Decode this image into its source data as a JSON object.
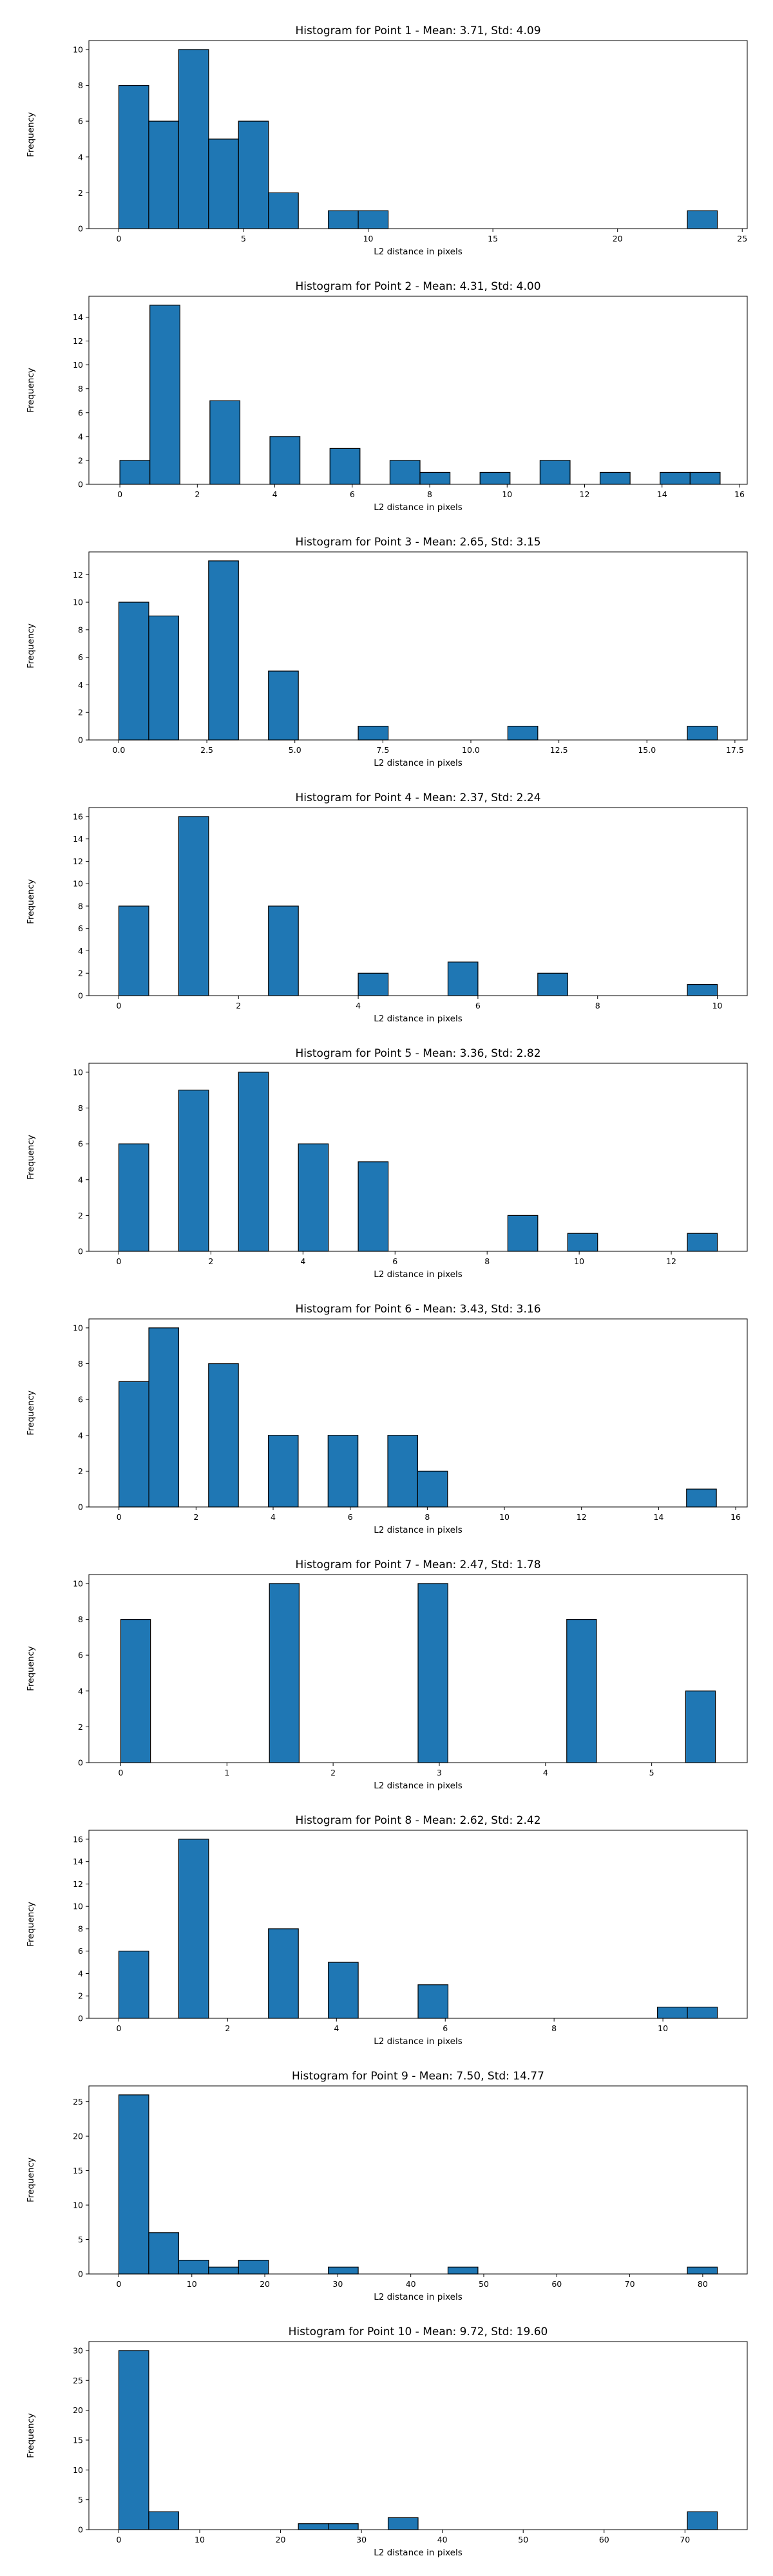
{
  "chart_data": [
    {
      "type": "bar",
      "title": "Histogram for Point 1 - Mean: 3.71, Std: 4.09",
      "xlabel": "L2 distance in pixels",
      "ylabel": "Frequency",
      "xlim": [
        -1.2,
        25.2
      ],
      "ylim": [
        0,
        10.5
      ],
      "xticks": [
        0,
        5,
        10,
        15,
        20,
        25
      ],
      "xtick_labels": [
        "0",
        "5",
        "10",
        "15",
        "20",
        "25"
      ],
      "yticks": [
        0,
        2,
        4,
        6,
        8,
        10
      ],
      "ytick_labels": [
        "0",
        "2",
        "4",
        "6",
        "8",
        "10"
      ],
      "bin_start": 0,
      "bin_width": 1.2,
      "counts": [
        8,
        6,
        10,
        5,
        6,
        2,
        0,
        1,
        1,
        0,
        0,
        0,
        0,
        0,
        0,
        0,
        0,
        0,
        0,
        1
      ]
    },
    {
      "type": "bar",
      "title": "Histogram for Point 2 - Mean: 4.31, Std: 4.00",
      "xlabel": "L2 distance in pixels",
      "ylabel": "Frequency",
      "xlim": [
        -0.8,
        16.2
      ],
      "ylim": [
        0,
        15.75
      ],
      "xticks": [
        0,
        2,
        4,
        6,
        8,
        10,
        12,
        14,
        16
      ],
      "xtick_labels": [
        "0",
        "2",
        "4",
        "6",
        "8",
        "10",
        "12",
        "14",
        "16"
      ],
      "yticks": [
        0,
        2,
        4,
        6,
        8,
        10,
        12,
        14
      ],
      "ytick_labels": [
        "0",
        "2",
        "4",
        "6",
        "8",
        "10",
        "12",
        "14"
      ],
      "bin_start": 0,
      "bin_width": 0.775,
      "counts": [
        2,
        15,
        0,
        7,
        0,
        4,
        0,
        3,
        0,
        2,
        1,
        0,
        1,
        0,
        2,
        0,
        1,
        0,
        1,
        1
      ]
    },
    {
      "type": "bar",
      "title": "Histogram for Point 3 - Mean: 2.65, Std: 3.15",
      "xlabel": "L2 distance in pixels",
      "ylabel": "Frequency",
      "xlim": [
        -0.85,
        17.85
      ],
      "ylim": [
        0,
        13.65
      ],
      "xticks": [
        0,
        2.5,
        5,
        7.5,
        10,
        12.5,
        15,
        17.5
      ],
      "xtick_labels": [
        "0.0",
        "2.5",
        "5.0",
        "7.5",
        "10.0",
        "12.5",
        "15.0",
        "17.5"
      ],
      "yticks": [
        0,
        2,
        4,
        6,
        8,
        10,
        12
      ],
      "ytick_labels": [
        "0",
        "2",
        "4",
        "6",
        "8",
        "10",
        "12"
      ],
      "bin_start": 0,
      "bin_width": 0.85,
      "counts": [
        10,
        9,
        0,
        13,
        0,
        5,
        0,
        0,
        1,
        0,
        0,
        0,
        0,
        1,
        0,
        0,
        0,
        0,
        0,
        1
      ]
    },
    {
      "type": "bar",
      "title": "Histogram for Point 4 - Mean: 2.37, Std: 2.24",
      "xlabel": "L2 distance in pixels",
      "ylabel": "Frequency",
      "xlim": [
        -0.5,
        10.5
      ],
      "ylim": [
        0,
        16.8
      ],
      "xticks": [
        0,
        2,
        4,
        6,
        8,
        10
      ],
      "xtick_labels": [
        "0",
        "2",
        "4",
        "6",
        "8",
        "10"
      ],
      "yticks": [
        0,
        2,
        4,
        6,
        8,
        10,
        12,
        14,
        16
      ],
      "ytick_labels": [
        "0",
        "2",
        "4",
        "6",
        "8",
        "10",
        "12",
        "14",
        "16"
      ],
      "bin_start": 0,
      "bin_width": 0.5,
      "counts": [
        8,
        0,
        16,
        0,
        0,
        8,
        0,
        0,
        2,
        0,
        0,
        3,
        0,
        0,
        2,
        0,
        0,
        0,
        0,
        1
      ]
    },
    {
      "type": "bar",
      "title": "Histogram for Point 5 - Mean: 3.36, Std: 2.82",
      "xlabel": "L2 distance in pixels",
      "ylabel": "Frequency",
      "xlim": [
        -0.65,
        13.65
      ],
      "ylim": [
        0,
        10.5
      ],
      "xticks": [
        0,
        2,
        4,
        6,
        8,
        10,
        12
      ],
      "xtick_labels": [
        "0",
        "2",
        "4",
        "6",
        "8",
        "10",
        "12"
      ],
      "yticks": [
        0,
        2,
        4,
        6,
        8,
        10
      ],
      "ytick_labels": [
        "0",
        "2",
        "4",
        "6",
        "8",
        "10"
      ],
      "bin_start": 0,
      "bin_width": 0.65,
      "counts": [
        6,
        0,
        9,
        0,
        10,
        0,
        6,
        0,
        5,
        0,
        0,
        0,
        0,
        2,
        0,
        1,
        0,
        0,
        0,
        1
      ]
    },
    {
      "type": "bar",
      "title": "Histogram for Point 6 - Mean: 3.43, Std: 3.16",
      "xlabel": "L2 distance in pixels",
      "ylabel": "Frequency",
      "xlim": [
        -0.78,
        16.3
      ],
      "ylim": [
        0,
        10.5
      ],
      "xticks": [
        0,
        2,
        4,
        6,
        8,
        10,
        12,
        14,
        16
      ],
      "xtick_labels": [
        "0",
        "2",
        "4",
        "6",
        "8",
        "10",
        "12",
        "14",
        "16"
      ],
      "yticks": [
        0,
        2,
        4,
        6,
        8,
        10
      ],
      "ytick_labels": [
        "0",
        "2",
        "4",
        "6",
        "8",
        "10"
      ],
      "bin_start": 0,
      "bin_width": 0.775,
      "counts": [
        7,
        10,
        0,
        8,
        0,
        4,
        0,
        4,
        0,
        4,
        2,
        0,
        0,
        0,
        0,
        0,
        0,
        0,
        0,
        1
      ]
    },
    {
      "type": "bar",
      "title": "Histogram for Point 7 - Mean: 2.47, Std: 1.78",
      "xlabel": "L2 distance in pixels",
      "ylabel": "Frequency",
      "xlim": [
        -0.3,
        5.9
      ],
      "ylim": [
        0,
        10.5
      ],
      "xticks": [
        0,
        1,
        2,
        3,
        4,
        5
      ],
      "xtick_labels": [
        "0",
        "1",
        "2",
        "3",
        "4",
        "5"
      ],
      "yticks": [
        0,
        2,
        4,
        6,
        8,
        10
      ],
      "ytick_labels": [
        "0",
        "2",
        "4",
        "6",
        "8",
        "10"
      ],
      "bin_start": 0,
      "bin_width": 0.28,
      "counts": [
        8,
        0,
        0,
        0,
        0,
        10,
        0,
        0,
        0,
        0,
        10,
        0,
        0,
        0,
        0,
        8,
        0,
        0,
        0,
        4
      ]
    },
    {
      "type": "bar",
      "title": "Histogram for Point 8 - Mean: 2.62, Std: 2.42",
      "xlabel": "L2 distance in pixels",
      "ylabel": "Frequency",
      "xlim": [
        -0.55,
        11.55
      ],
      "ylim": [
        0,
        16.8
      ],
      "xticks": [
        0,
        2,
        4,
        6,
        8,
        10
      ],
      "xtick_labels": [
        "0",
        "2",
        "4",
        "6",
        "8",
        "10"
      ],
      "yticks": [
        0,
        2,
        4,
        6,
        8,
        10,
        12,
        14,
        16
      ],
      "ytick_labels": [
        "0",
        "2",
        "4",
        "6",
        "8",
        "10",
        "12",
        "14",
        "16"
      ],
      "bin_start": 0,
      "bin_width": 0.55,
      "counts": [
        6,
        0,
        16,
        0,
        0,
        8,
        0,
        5,
        0,
        0,
        3,
        0,
        0,
        0,
        0,
        0,
        0,
        0,
        1,
        1
      ]
    },
    {
      "type": "bar",
      "title": "Histogram for Point 9 - Mean: 7.50, Std: 14.77",
      "xlabel": "L2 distance in pixels",
      "ylabel": "Frequency",
      "xlim": [
        -4.1,
        86.1
      ],
      "ylim": [
        0,
        27.3
      ],
      "xticks": [
        0,
        10,
        20,
        30,
        40,
        50,
        60,
        70,
        80
      ],
      "xtick_labels": [
        "0",
        "10",
        "20",
        "30",
        "40",
        "50",
        "60",
        "70",
        "80"
      ],
      "yticks": [
        0,
        5,
        10,
        15,
        20,
        25
      ],
      "ytick_labels": [
        "0",
        "5",
        "10",
        "15",
        "20",
        "25"
      ],
      "bin_start": 0,
      "bin_width": 4.1,
      "counts": [
        26,
        6,
        2,
        1,
        2,
        0,
        0,
        1,
        0,
        0,
        0,
        1,
        0,
        0,
        0,
        0,
        0,
        0,
        0,
        1
      ]
    },
    {
      "type": "bar",
      "title": "Histogram for Point 10 - Mean: 9.72, Std: 19.60",
      "xlabel": "L2 distance in pixels",
      "ylabel": "Frequency",
      "xlim": [
        -3.7,
        77.7
      ],
      "ylim": [
        0,
        31.5
      ],
      "xticks": [
        0,
        10,
        20,
        30,
        40,
        50,
        60,
        70
      ],
      "xtick_labels": [
        "0",
        "10",
        "20",
        "30",
        "40",
        "50",
        "60",
        "70"
      ],
      "yticks": [
        0,
        5,
        10,
        15,
        20,
        25,
        30
      ],
      "ytick_labels": [
        "0",
        "5",
        "10",
        "15",
        "20",
        "25",
        "30"
      ],
      "bin_start": 0,
      "bin_width": 3.7,
      "counts": [
        30,
        3,
        0,
        0,
        0,
        0,
        1,
        1,
        0,
        2,
        0,
        0,
        0,
        0,
        0,
        0,
        0,
        0,
        0,
        3
      ]
    }
  ]
}
